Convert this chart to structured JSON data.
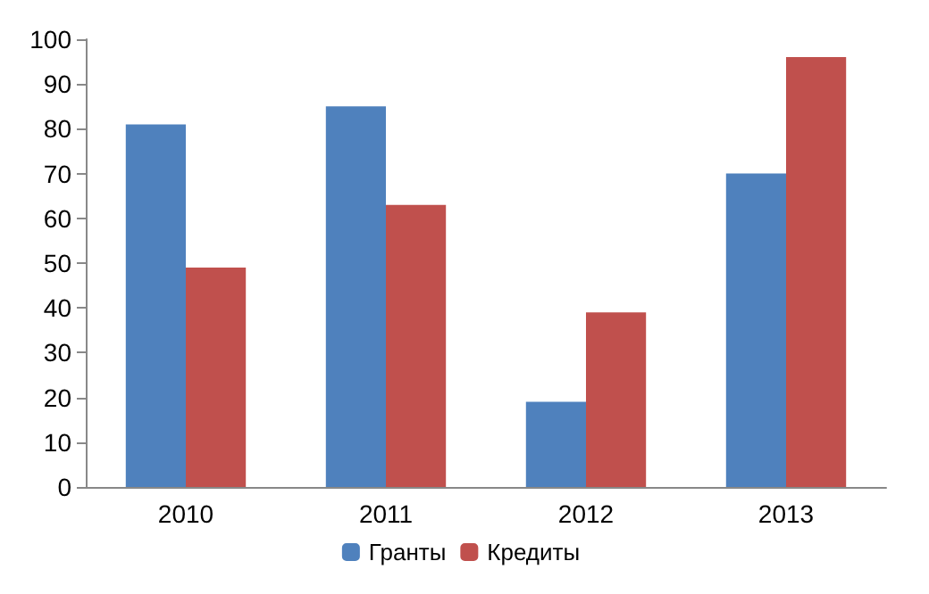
{
  "chart_data": {
    "type": "bar",
    "categories": [
      "2010",
      "2011",
      "2012",
      "2013"
    ],
    "series": [
      {
        "name": "Гранты",
        "color": "#4f81bd",
        "values": [
          81,
          85,
          19,
          70
        ]
      },
      {
        "name": "Кредиты",
        "color": "#c0504d",
        "values": [
          49,
          63,
          39,
          96
        ]
      }
    ],
    "ylim": [
      0,
      100
    ],
    "yticks": [
      0,
      10,
      20,
      30,
      40,
      50,
      60,
      70,
      80,
      90,
      100
    ],
    "grid": false,
    "legend": "bottom"
  }
}
